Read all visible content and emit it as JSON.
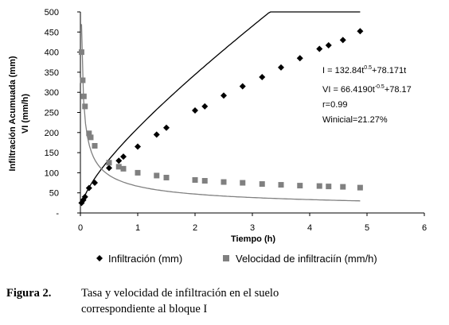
{
  "chart_data": {
    "type": "scatter",
    "ylabel_line1": "Infiltración Acumuada (mm)",
    "ylabel_line2": "VI (mm/h)",
    "xlabel": "Tiempo (h)",
    "xlim": [
      0,
      6
    ],
    "ylim": [
      0,
      500
    ],
    "x_ticks": [
      0,
      1,
      2,
      3,
      4,
      5,
      6
    ],
    "y_ticks": [
      0,
      50,
      100,
      150,
      200,
      250,
      300,
      350,
      400,
      450,
      500
    ],
    "y_tick_labels": [
      "-",
      "50",
      "100",
      "150",
      "200",
      "250",
      "300",
      "350",
      "400",
      "450",
      "500"
    ],
    "grid": false,
    "legend_position": "bottom",
    "series": [
      {
        "name": "Infiltración (mm)",
        "marker": "diamond",
        "color": "#000000",
        "x": [
          0.02,
          0.05,
          0.08,
          0.15,
          0.25,
          0.5,
          0.67,
          0.75,
          1.0,
          1.33,
          1.5,
          2.0,
          2.17,
          2.5,
          2.83,
          3.17,
          3.5,
          3.83,
          4.17,
          4.33,
          4.58,
          4.88
        ],
        "y": [
          25,
          32,
          40,
          62,
          75,
          112,
          130,
          140,
          165,
          195,
          212,
          255,
          265,
          292,
          315,
          338,
          362,
          385,
          408,
          417,
          430,
          452
        ]
      },
      {
        "name": "Velocidad de infiltraciín (mm/h)",
        "marker": "square",
        "color": "#808080",
        "x": [
          0.02,
          0.04,
          0.06,
          0.08,
          0.15,
          0.18,
          0.25,
          0.5,
          0.67,
          0.75,
          1.0,
          1.33,
          1.5,
          2.0,
          2.17,
          2.5,
          2.83,
          3.17,
          3.5,
          3.83,
          4.17,
          4.33,
          4.58,
          4.88
        ],
        "y": [
          400,
          330,
          290,
          265,
          198,
          188,
          167,
          125,
          115,
          110,
          100,
          93,
          88,
          82,
          80,
          77,
          75,
          72,
          70,
          68,
          67,
          66,
          65,
          63
        ]
      }
    ],
    "fits": [
      {
        "series": 0,
        "a": 132.84,
        "b": 0.5,
        "c": 78.171,
        "color": "#000000"
      },
      {
        "series": 1,
        "a": 66.419,
        "b": -0.5,
        "c": 78.17,
        "color": "#808080"
      }
    ],
    "annotations": {
      "eq1": {
        "prefix": "I = 132.84t",
        "exp": "0.5",
        "suffix": "+78.171t"
      },
      "eq2": {
        "prefix": "VI = 66.4190t",
        "exp": "-0.5",
        "suffix": "+78.17"
      },
      "r": "r=0.99",
      "winicial": "Winicial=21.27%"
    }
  },
  "caption": {
    "label": "Figura 2.",
    "line1": "Tasa y velocidad de infiltración en el suelo",
    "line2": "correspondiente al bloque I"
  }
}
